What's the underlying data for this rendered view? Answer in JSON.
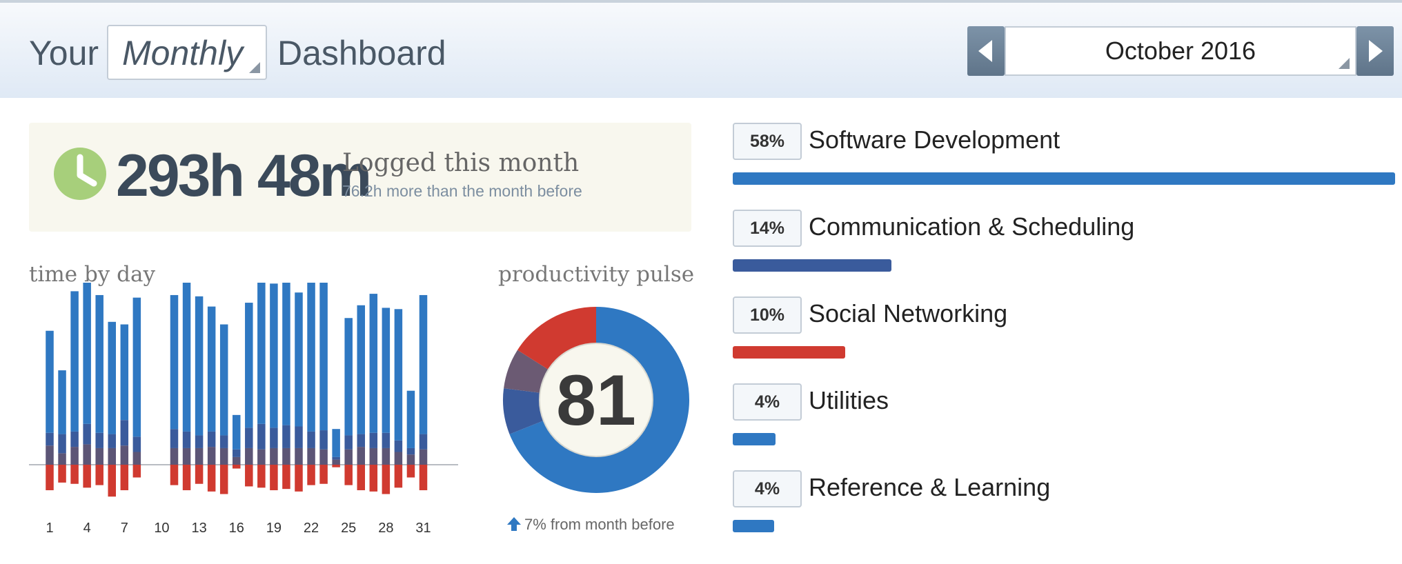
{
  "header": {
    "title_prefix": "Your",
    "period": "Monthly",
    "title_suffix": "Dashboard",
    "month": "October 2016",
    "bg_color": "#dfe9f5"
  },
  "summary": {
    "total": "293h 48m",
    "label": "Logged this month",
    "comparison": "76.2h more than the month before",
    "icon": "clock-icon",
    "icon_color": "#a7cf7b"
  },
  "time_by_day": {
    "title": "time by day"
  },
  "productivity_pulse": {
    "title": "productivity pulse",
    "score": "81",
    "change": "7% from month before",
    "icon": "up-arrow-icon"
  },
  "categories": [
    {
      "pct": "58%",
      "name": "Software Development",
      "bar_fraction": 1.0,
      "color": "#2f78c2"
    },
    {
      "pct": "14%",
      "name": "Communication & Scheduling",
      "bar_fraction": 0.24,
      "color": "#3a5b9c"
    },
    {
      "pct": "10%",
      "name": "Social Networking",
      "bar_fraction": 0.17,
      "color": "#d03a30"
    },
    {
      "pct": "4%",
      "name": "Utilities",
      "bar_fraction": 0.065,
      "color": "#2f78c2"
    },
    {
      "pct": "4%",
      "name": "Reference & Learning",
      "bar_fraction": 0.063,
      "color": "#2f78c2"
    }
  ],
  "chart_data": [
    {
      "type": "bar",
      "title": "time by day",
      "categories": [
        "1",
        "2",
        "3",
        "4",
        "5",
        "6",
        "7",
        "8",
        "9",
        "10",
        "11",
        "12",
        "13",
        "14",
        "15",
        "16",
        "17",
        "18",
        "19",
        "20",
        "21",
        "22",
        "23",
        "24",
        "25",
        "26",
        "27",
        "28",
        "29",
        "30",
        "31"
      ],
      "x_tick_labels": [
        "1",
        "4",
        "7",
        "10",
        "13",
        "16",
        "19",
        "22",
        "25",
        "28",
        "31"
      ],
      "series": [
        {
          "values": [
            8.0,
            5.0,
            11.0,
            12.2,
            10.8,
            8.8,
            7.5,
            10.9,
            0,
            0,
            10.5,
            11.8,
            10.9,
            9.8,
            8.7,
            2.7,
            9.8,
            12.0,
            11.3,
            12.2,
            10.5,
            13.3,
            11.7,
            2.2,
            9.2,
            10.1,
            10.9,
            9.8,
            10.3,
            4.5,
            10.9
          ],
          "color": "#2f78c2"
        },
        {
          "values": [
            1.0,
            1.5,
            1.2,
            1.6,
            1.2,
            1.1,
            2.0,
            1.2,
            0,
            0,
            1.5,
            1.3,
            1.0,
            1.2,
            1.0,
            0.6,
            1.6,
            2.0,
            1.6,
            1.8,
            1.7,
            1.3,
            1.5,
            0.2,
            1.1,
            1.0,
            1.2,
            1.2,
            0.9,
            0.5,
            1.2
          ],
          "color": "#3a5b9c"
        },
        {
          "values": [
            1.5,
            0.9,
            1.4,
            1.6,
            1.3,
            1.3,
            1.5,
            1.0,
            0,
            0,
            1.3,
            1.3,
            1.3,
            1.4,
            1.3,
            0.6,
            1.3,
            1.2,
            1.3,
            1.3,
            1.3,
            1.3,
            1.2,
            0.4,
            1.2,
            1.4,
            1.3,
            1.3,
            1.0,
            0.8,
            1.2
          ],
          "color": "#5c5576"
        },
        {
          "values": [
            -2.0,
            -1.4,
            -1.5,
            -1.8,
            -1.6,
            -2.5,
            -2.0,
            -1.0,
            0,
            0,
            -1.6,
            -2.0,
            -1.5,
            -2.1,
            -2.3,
            -0.3,
            -1.7,
            -1.8,
            -2.0,
            -1.9,
            -2.1,
            -1.6,
            -1.5,
            -0.2,
            -1.6,
            -2.0,
            -2.1,
            -2.3,
            -1.8,
            -1.0,
            -2.0
          ],
          "color": "#d03a30"
        }
      ]
    },
    {
      "type": "pie",
      "title": "productivity pulse",
      "center_label": "81",
      "slices": [
        {
          "value": 69,
          "color": "#2f78c2"
        },
        {
          "value": 8,
          "color": "#3a5b9c"
        },
        {
          "value": 7,
          "color": "#6b5a73"
        },
        {
          "value": 16,
          "color": "#d03a30"
        }
      ]
    }
  ]
}
